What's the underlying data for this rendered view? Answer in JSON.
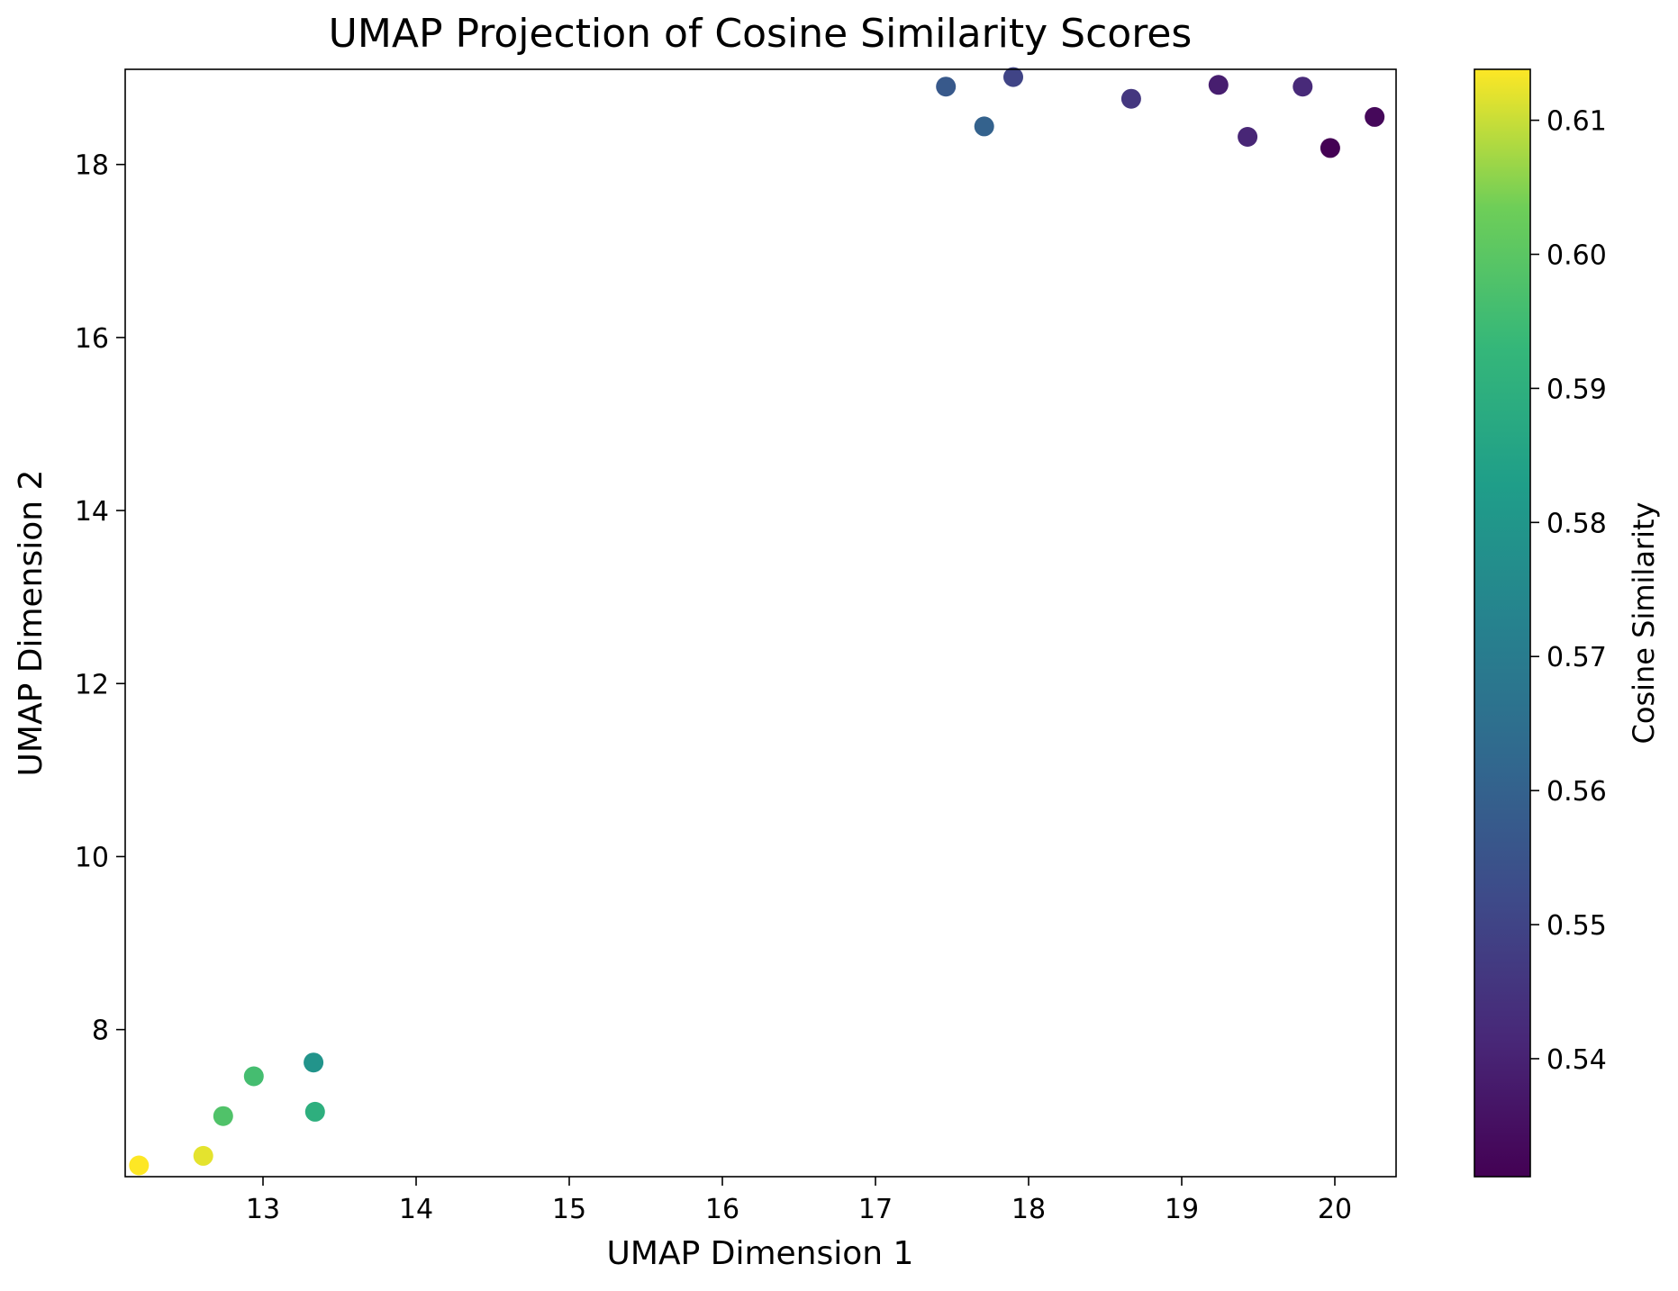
{
  "chart_data": {
    "type": "scatter",
    "title": "UMAP Projection of Cosine Similarity Scores",
    "xlabel": "UMAP Dimension 1",
    "ylabel": "UMAP Dimension 2",
    "xlim": [
      12.1,
      20.4
    ],
    "ylim": [
      6.3,
      19.1
    ],
    "x_ticks": [
      13,
      14,
      15,
      16,
      17,
      18,
      19,
      20
    ],
    "y_ticks": [
      8,
      10,
      12,
      14,
      16,
      18
    ],
    "grid": false,
    "colormap": "viridis",
    "colorbar": {
      "label": "Cosine Similarity",
      "range": [
        0.5312,
        0.6138
      ],
      "ticks": [
        "0.54",
        "0.55",
        "0.56",
        "0.57",
        "0.58",
        "0.59",
        "0.60",
        "0.61"
      ],
      "tick_values": [
        0.54,
        0.55,
        0.56,
        0.57,
        0.58,
        0.59,
        0.6,
        0.61
      ]
    },
    "points": [
      {
        "x": 12.19,
        "y": 6.43,
        "value": 0.6138
      },
      {
        "x": 12.61,
        "y": 6.54,
        "value": 0.612
      },
      {
        "x": 12.74,
        "y": 7.0,
        "value": 0.598
      },
      {
        "x": 12.94,
        "y": 7.46,
        "value": 0.596
      },
      {
        "x": 13.33,
        "y": 7.62,
        "value": 0.579
      },
      {
        "x": 13.34,
        "y": 7.05,
        "value": 0.59
      },
      {
        "x": 17.46,
        "y": 18.9,
        "value": 0.557
      },
      {
        "x": 17.71,
        "y": 18.44,
        "value": 0.56
      },
      {
        "x": 17.9,
        "y": 19.01,
        "value": 0.55
      },
      {
        "x": 18.67,
        "y": 18.76,
        "value": 0.546
      },
      {
        "x": 19.24,
        "y": 18.92,
        "value": 0.539
      },
      {
        "x": 19.43,
        "y": 18.32,
        "value": 0.541
      },
      {
        "x": 19.79,
        "y": 18.9,
        "value": 0.542
      },
      {
        "x": 19.97,
        "y": 18.19,
        "value": 0.5312
      },
      {
        "x": 20.26,
        "y": 18.55,
        "value": 0.533
      }
    ]
  }
}
